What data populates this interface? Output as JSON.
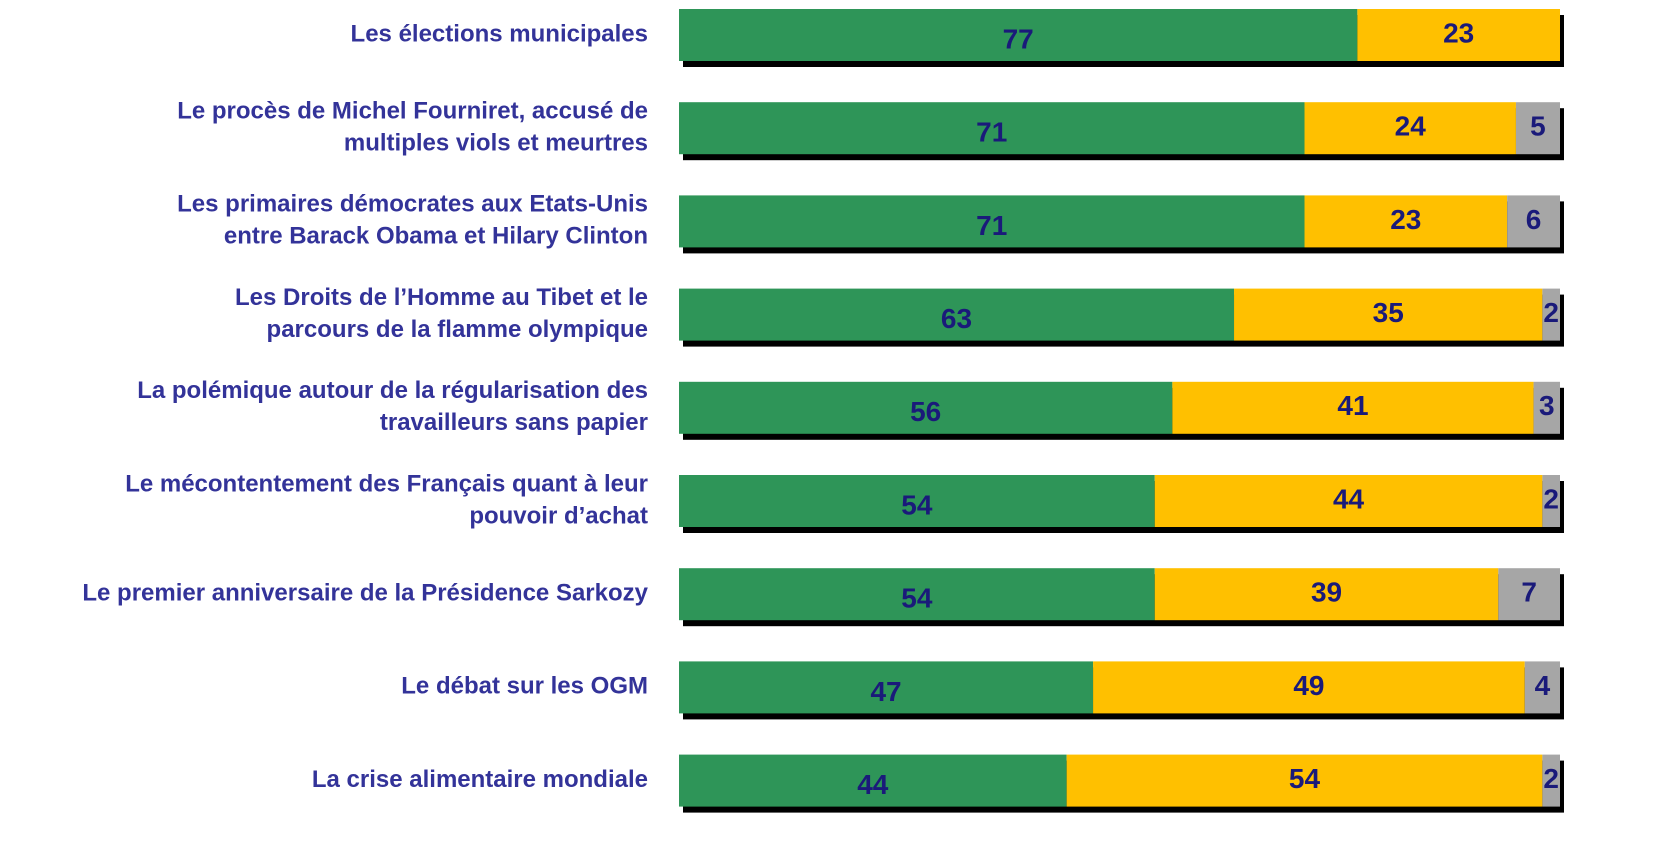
{
  "chart_data": {
    "type": "bar",
    "orientation": "horizontal",
    "stacked": true,
    "categories": [
      [
        "Les élections municipales"
      ],
      [
        "Le procès de Michel Fourniret, accusé de",
        "multiples viols et meurtres"
      ],
      [
        "Les primaires démocrates aux Etats-Unis",
        "entre Barack Obama et Hilary Clinton"
      ],
      [
        "Les Droits de l’Homme au Tibet et le",
        "parcours de la flamme olympique"
      ],
      [
        "La polémique autour de la régularisation des",
        "travailleurs sans papier"
      ],
      [
        "Le mécontentement des Français quant à leur",
        "pouvoir d’achat"
      ],
      [
        "Le premier anniversaire de la Présidence Sarkozy"
      ],
      [
        "Le débat sur les OGM"
      ],
      [
        "La crise alimentaire mondiale"
      ]
    ],
    "series": [
      {
        "color": "#2e9558",
        "values": [
          77,
          71,
          71,
          63,
          56,
          54,
          54,
          47,
          44
        ]
      },
      {
        "color": "#ffc000",
        "values": [
          23,
          24,
          23,
          35,
          41,
          44,
          39,
          49,
          54
        ]
      },
      {
        "color": "#a6a6a6",
        "values": [
          null,
          5,
          6,
          2,
          3,
          2,
          7,
          4,
          2
        ]
      }
    ],
    "xlim": [
      0,
      100
    ]
  }
}
